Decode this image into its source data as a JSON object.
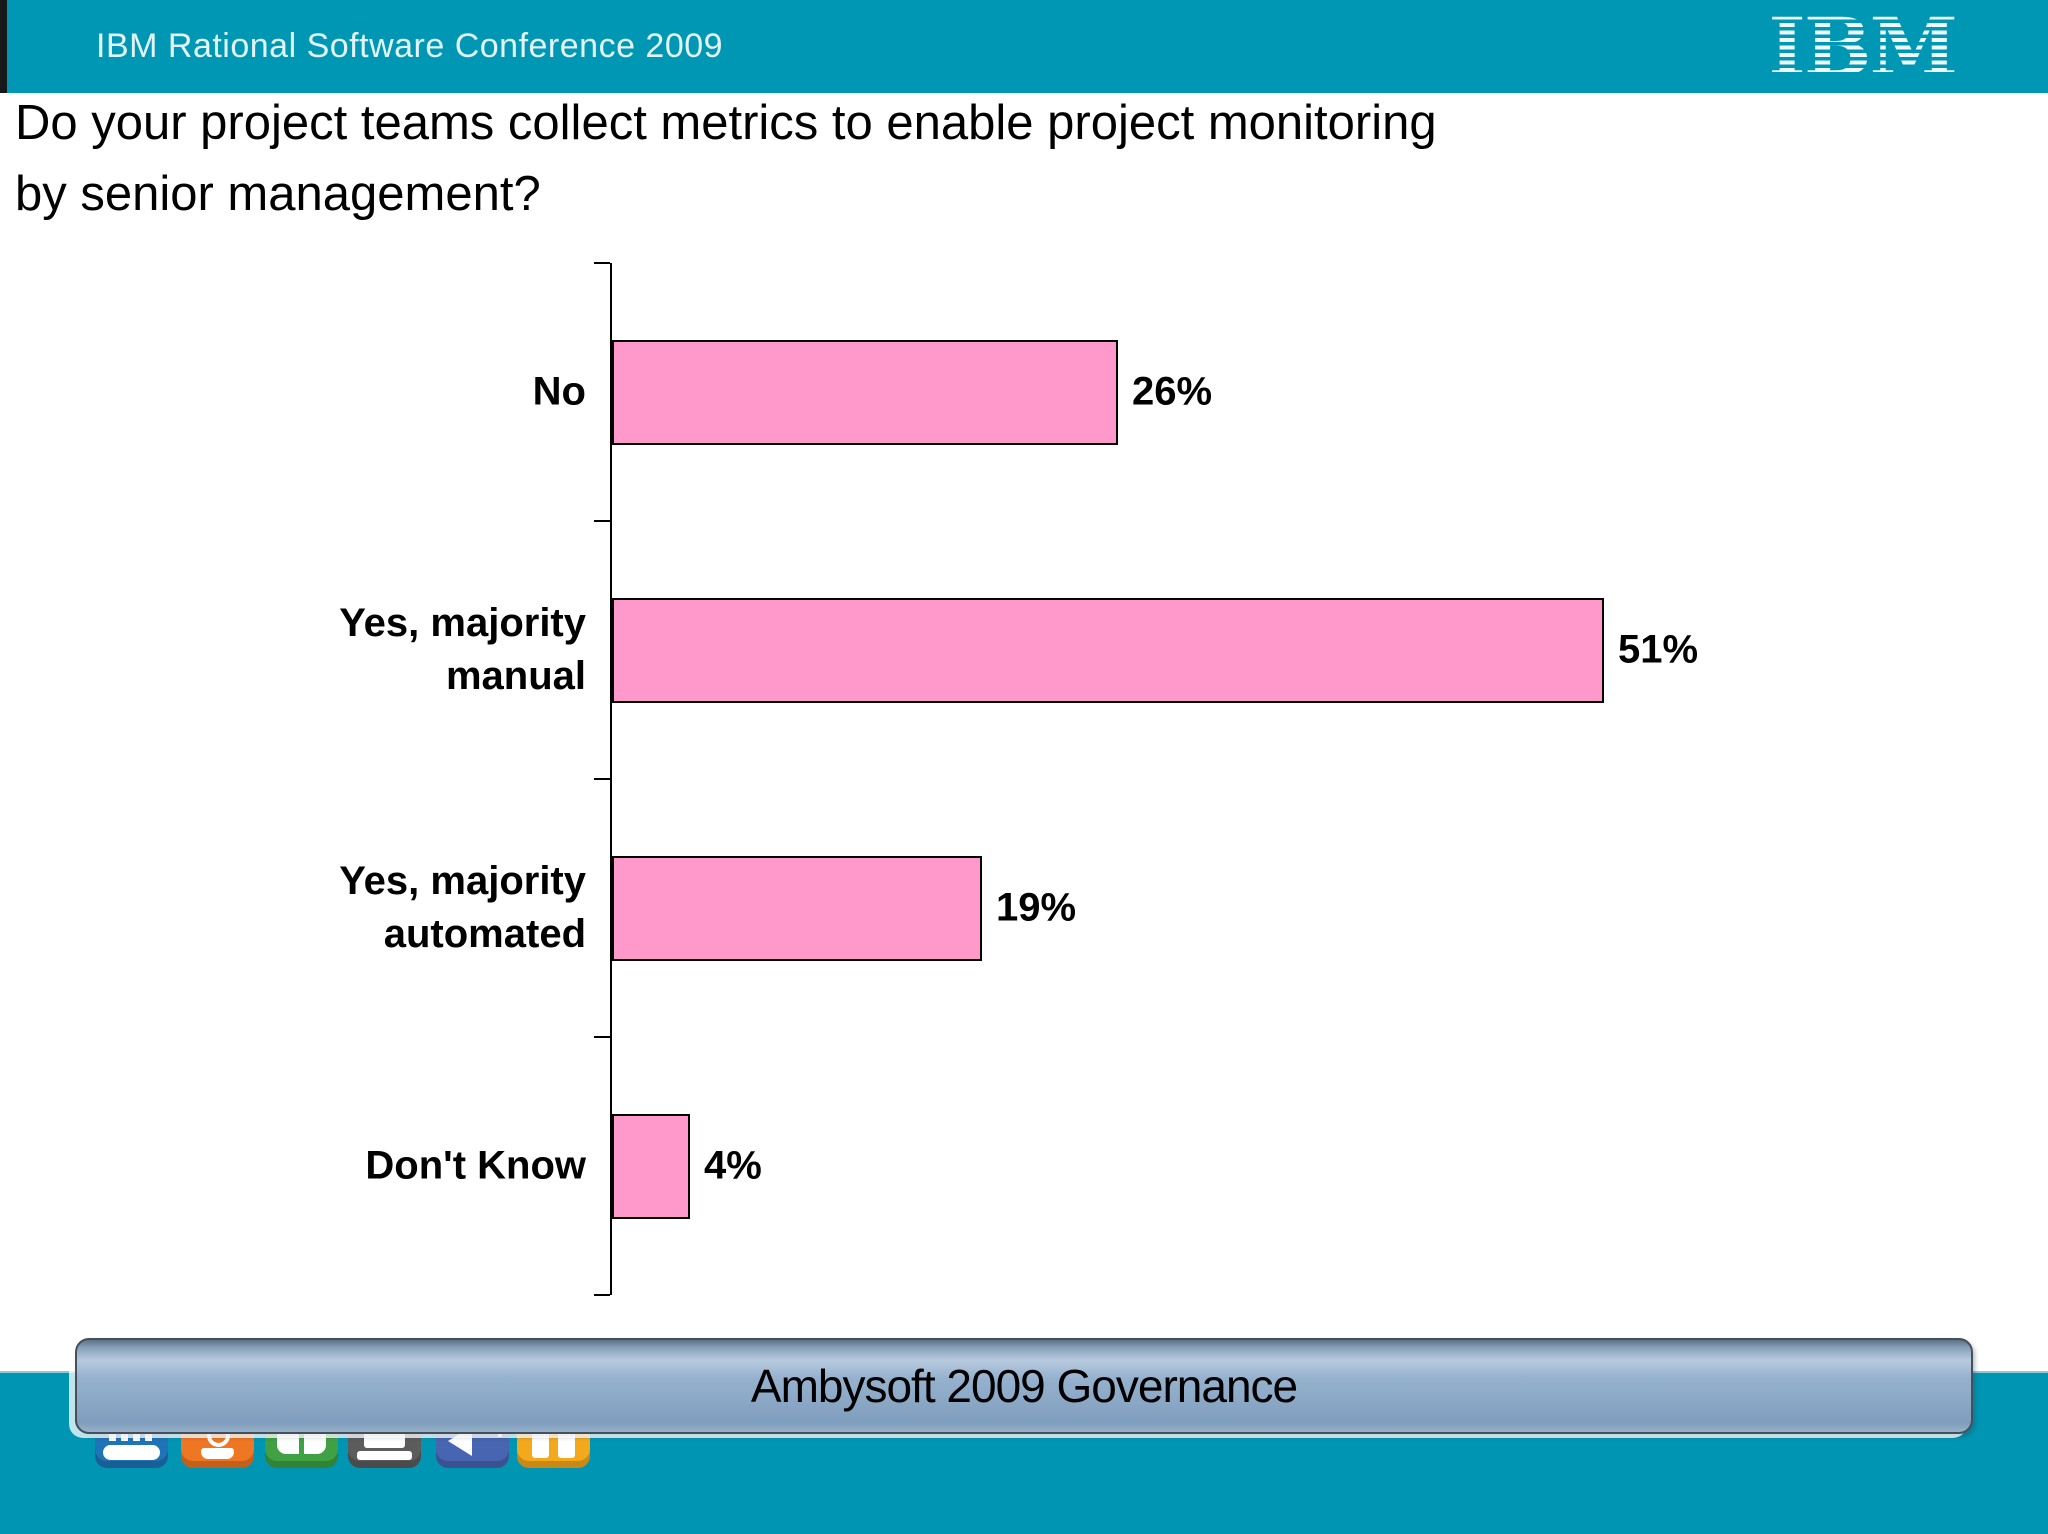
{
  "header": {
    "conference_title": "IBM Rational Software Conference 2009",
    "ibm_logo": "IBM"
  },
  "slide": {
    "title": "Do your project teams collect metrics to enable project monitoring\nby senior management?"
  },
  "chart_data": {
    "type": "bar",
    "orientation": "horizontal",
    "title": "",
    "xlabel": "",
    "ylabel": "",
    "categories": [
      "No",
      "Yes, majority manual",
      "Yes, majority automated",
      "Don't Know"
    ],
    "category_label_lines": [
      "No",
      "Yes, majority\nmanual",
      "Yes, majority\nautomated",
      "Don't Know"
    ],
    "values": [
      26,
      51,
      19,
      4
    ],
    "value_labels": [
      "26%",
      "51%",
      "19%",
      "4%"
    ],
    "xlim": [
      0,
      60
    ],
    "grid": false,
    "legend": false,
    "bar_color": "#FF99CC",
    "bar_border_color": "#000000"
  },
  "footer": {
    "banner_label": "Ambysoft 2009 Governance",
    "dock_icons": [
      {
        "name": "keyboard-icon",
        "color": "#1f74b8"
      },
      {
        "name": "presenter-icon",
        "color": "#ef7622"
      },
      {
        "name": "open-book-icon",
        "color": "#3fa044"
      },
      {
        "name": "laptop-icon",
        "color": "#5c5c5c"
      },
      {
        "name": "speaker-icon",
        "color": "#4765b0"
      },
      {
        "name": "applause-icon",
        "color": "#f4a81c"
      }
    ]
  },
  "colors": {
    "header_teal": "#0097B4",
    "footer_teal": "#0096B3",
    "banner_blue": "#8FABC9",
    "header_accent_black": "#16181A"
  }
}
